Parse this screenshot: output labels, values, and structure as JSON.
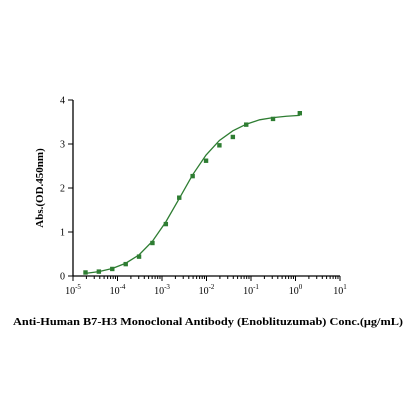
{
  "chart_data": {
    "type": "scatter",
    "title": "",
    "xlabel": "Anti-Human B7-H3 Monoclonal Antibody (Enoblituzumab) Conc.(μg/mL)",
    "ylabel": "Abs.(OD.450nm)",
    "x_scale": "log10",
    "xlim": [
      1e-05,
      10
    ],
    "ylim": [
      0,
      4
    ],
    "x_ticks": [
      {
        "value": 1e-05,
        "base": "10",
        "exp": "-5"
      },
      {
        "value": 0.0001,
        "base": "10",
        "exp": "-4"
      },
      {
        "value": 0.001,
        "base": "10",
        "exp": "-3"
      },
      {
        "value": 0.01,
        "base": "10",
        "exp": "-2"
      },
      {
        "value": 0.1,
        "base": "10",
        "exp": "-1"
      },
      {
        "value": 1,
        "base": "10",
        "exp": "0"
      },
      {
        "value": 10,
        "base": "10",
        "exp": "1"
      }
    ],
    "y_ticks": [
      0,
      1,
      2,
      3,
      4
    ],
    "grid": false,
    "color": "#2e7d32",
    "series": [
      {
        "points": [
          {
            "x": 1.91e-05,
            "y": 0.08
          },
          {
            "x": 3.81e-05,
            "y": 0.1
          },
          {
            "x": 7.63e-05,
            "y": 0.16
          },
          {
            "x": 0.000153,
            "y": 0.27
          },
          {
            "x": 0.000305,
            "y": 0.44
          },
          {
            "x": 0.00061,
            "y": 0.75
          },
          {
            "x": 0.00122,
            "y": 1.18
          },
          {
            "x": 0.00244,
            "y": 1.78
          },
          {
            "x": 0.00488,
            "y": 2.27
          },
          {
            "x": 0.00977,
            "y": 2.62
          },
          {
            "x": 0.0195,
            "y": 2.97
          },
          {
            "x": 0.0391,
            "y": 3.16
          },
          {
            "x": 0.0781,
            "y": 3.44
          },
          {
            "x": 0.3125,
            "y": 3.57
          },
          {
            "x": 1.25,
            "y": 3.7
          }
        ],
        "fit_curve": [
          {
            "x": 1.91e-05,
            "y": 0.06
          },
          {
            "x": 3.81e-05,
            "y": 0.1
          },
          {
            "x": 7.63e-05,
            "y": 0.17
          },
          {
            "x": 0.000153,
            "y": 0.29
          },
          {
            "x": 0.000305,
            "y": 0.48
          },
          {
            "x": 0.00061,
            "y": 0.79
          },
          {
            "x": 0.00122,
            "y": 1.23
          },
          {
            "x": 0.00244,
            "y": 1.76
          },
          {
            "x": 0.00488,
            "y": 2.3
          },
          {
            "x": 0.00977,
            "y": 2.75
          },
          {
            "x": 0.0195,
            "y": 3.08
          },
          {
            "x": 0.0391,
            "y": 3.3
          },
          {
            "x": 0.0781,
            "y": 3.45
          },
          {
            "x": 0.156,
            "y": 3.55
          },
          {
            "x": 0.3125,
            "y": 3.6
          },
          {
            "x": 0.625,
            "y": 3.63
          },
          {
            "x": 1.25,
            "y": 3.65
          }
        ]
      }
    ]
  }
}
